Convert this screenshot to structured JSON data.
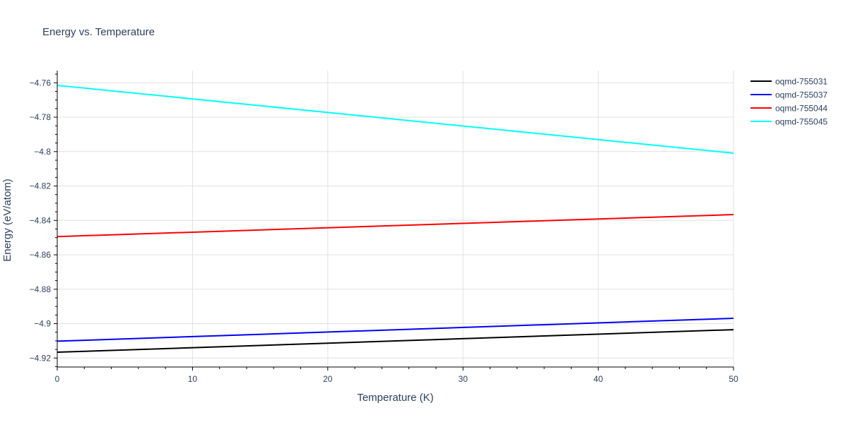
{
  "chart_data": {
    "type": "line",
    "title": "Energy vs. Temperature",
    "xlabel": "Temperature (K)",
    "ylabel": "Energy (eV/atom)",
    "xlim": [
      0,
      50
    ],
    "ylim": [
      -4.925,
      -4.753
    ],
    "xticks": [
      0,
      10,
      20,
      30,
      40,
      50
    ],
    "yticks": [
      -4.76,
      -4.78,
      -4.8,
      -4.82,
      -4.84,
      -4.86,
      -4.88,
      -4.9,
      -4.92
    ],
    "ytick_labels": [
      "−4.76",
      "−4.78",
      "−4.8",
      "−4.82",
      "−4.84",
      "−4.86",
      "−4.88",
      "−4.9",
      "−4.92"
    ],
    "grid": true,
    "legend_position": "top-right",
    "series": [
      {
        "name": "oqmd-755031",
        "color": "#000000",
        "x": [
          0,
          50
        ],
        "y": [
          -4.9166,
          -4.9035
        ]
      },
      {
        "name": "oqmd-755037",
        "color": "#0000ff",
        "x": [
          0,
          50
        ],
        "y": [
          -4.9102,
          -4.8969
        ]
      },
      {
        "name": "oqmd-755044",
        "color": "#ff0000",
        "x": [
          0,
          50
        ],
        "y": [
          -4.8494,
          -4.8366
        ]
      },
      {
        "name": "oqmd-755045",
        "color": "#00ffff",
        "x": [
          0,
          50
        ],
        "y": [
          -4.7615,
          -4.8009
        ]
      }
    ]
  }
}
